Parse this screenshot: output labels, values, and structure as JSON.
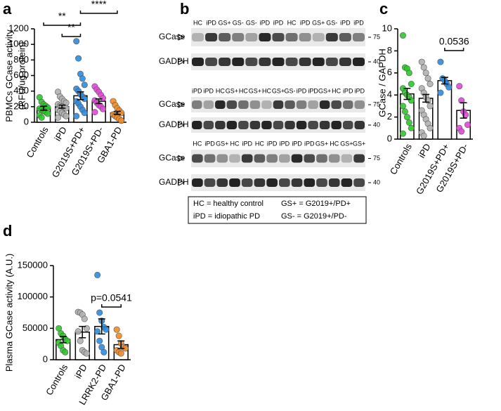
{
  "panel_labels": [
    "a",
    "b",
    "c",
    "d"
  ],
  "chart_data": [
    {
      "type": "bar",
      "ylabel": [
        "PBMCs GCase activity",
        "(RFU/ug protein)"
      ],
      "categories": [
        "Controls",
        "iPD",
        "G2019S+PD+",
        "G2019S+PD-",
        "GBA1-PD"
      ],
      "colors": [
        "#2ec62a",
        "#b0b0b0",
        "#2a8be0",
        "#e048d8",
        "#f28c28"
      ],
      "values": [
        180,
        200,
        340,
        270,
        120
      ],
      "errors": [
        25,
        20,
        50,
        30,
        20
      ],
      "points": [
        [
          320,
          260,
          230,
          210,
          190,
          175,
          160,
          145,
          130,
          110,
          90,
          60
        ],
        [
          390,
          330,
          300,
          270,
          250,
          230,
          210,
          200,
          190,
          180,
          160,
          140,
          120,
          100,
          80,
          60
        ],
        [
          1040,
          820,
          620,
          560,
          480,
          430,
          400,
          360,
          330,
          300,
          270,
          240,
          200,
          160,
          120,
          80
        ],
        [
          460,
          420,
          390,
          350,
          310,
          280,
          250,
          220,
          200,
          170,
          130
        ],
        [
          270,
          220,
          180,
          150,
          120,
          100,
          80,
          60,
          40,
          20
        ]
      ],
      "ylim": [
        0,
        1200
      ],
      "yticks": [
        0,
        200,
        400,
        600,
        800,
        1000,
        1200
      ],
      "annotations": [
        "**",
        "**",
        "****"
      ]
    },
    {
      "type": "bar",
      "ylabel": [
        "GCase / GAPDH"
      ],
      "categories": [
        "Controls",
        "iPD",
        "G2019S+PD+",
        "G2019S+PD-"
      ],
      "colors": [
        "#2ec62a",
        "#b0b0b0",
        "#2a8be0",
        "#e048d8"
      ],
      "values": [
        4.1,
        3.7,
        5.3,
        2.6
      ],
      "errors": [
        0.5,
        0.35,
        0.3,
        0.7
      ],
      "points": [
        [
          9.4,
          6.5,
          6.4,
          6.0,
          5.0,
          4.6,
          4.2,
          4.0,
          3.8,
          3.5,
          3.0,
          2.5,
          2.0,
          1.5,
          1.0,
          0.5
        ],
        [
          7.0,
          6.5,
          6.0,
          5.5,
          5.0,
          4.6,
          4.2,
          3.8,
          3.5,
          3.0,
          2.6,
          2.2,
          1.8,
          1.4,
          1.0,
          0.6,
          0.3
        ],
        [
          7.0,
          5.5,
          5.3,
          5.0,
          4.7,
          4.2
        ],
        [
          4.8,
          3.5,
          2.5,
          2.2,
          1.3,
          1.0,
          0.7
        ]
      ],
      "ylim": [
        0,
        10
      ],
      "yticks": [
        0,
        2,
        4,
        6,
        8,
        10
      ],
      "annotations": [
        "0.0536"
      ]
    },
    {
      "type": "bar",
      "ylabel": [
        "Plasma GCase activity (A.U.)"
      ],
      "categories": [
        "Controls",
        "iPD",
        "LRRK2-PD",
        "GBA1-PD"
      ],
      "colors": [
        "#2ec62a",
        "#b0b0b0",
        "#2a8be0",
        "#f28c28"
      ],
      "values": [
        32000,
        44000,
        53000,
        24000
      ],
      "errors": [
        5000,
        9000,
        12000,
        6000
      ],
      "points": [
        [
          50000,
          42000,
          38000,
          33000,
          30000,
          27000,
          22000,
          15000,
          12000
        ],
        [
          76000,
          75000,
          72000,
          65000,
          50000,
          45000,
          30000,
          15000,
          12000,
          10000
        ],
        [
          135000,
          75000,
          62000,
          52000,
          48000,
          45000,
          30000,
          20000,
          12000
        ],
        [
          48000,
          38000,
          26000,
          20000,
          18000,
          15000,
          12000,
          10000
        ]
      ],
      "ylim": [
        0,
        150000
      ],
      "yticks": [
        0,
        50000,
        100000,
        150000
      ],
      "annotations": [
        "p=0.0541"
      ]
    }
  ],
  "blot": {
    "groups": [
      {
        "lanes": [
          "HC",
          "iPD",
          "GS+",
          "GS-",
          "GS-",
          "iPD",
          "iPD",
          "HC",
          "iPD",
          "GS+",
          "GS-",
          "iPD",
          "iPD"
        ],
        "bands": [
          "GCase",
          "GADPH"
        ],
        "markers": [
          "75",
          "40"
        ]
      },
      {
        "lanes": [
          "iPD",
          "iPD",
          "HC",
          "GS+",
          "HC",
          "GS+",
          "HC",
          "GS+",
          "GS-",
          "iPD",
          "iPD",
          "GS+",
          "HC",
          "iPD",
          "iPD"
        ],
        "bands": [
          "GCase",
          "GADPH"
        ],
        "markers": [
          "75",
          "40"
        ]
      },
      {
        "lanes": [
          "HC",
          "iPD",
          "GS+",
          "HC",
          "iPD",
          "HC",
          "iPD",
          "iPD",
          "iPD",
          "iPD",
          "GS+",
          "HC",
          "GS+",
          "GS+"
        ],
        "bands": [
          "GCase",
          "GADPH"
        ],
        "markers": [
          "75",
          "40"
        ]
      }
    ],
    "legend": [
      "HC = healthy control",
      "GS+ = G2019+/PD+",
      "iPD = idiopathic PD",
      "GS- = G2019+/PD-"
    ]
  }
}
